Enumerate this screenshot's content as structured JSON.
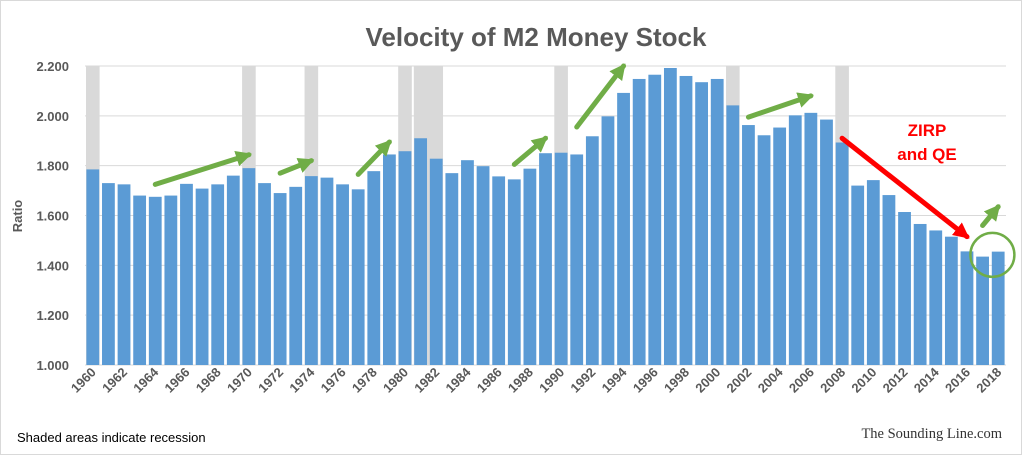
{
  "chart_data": {
    "type": "bar",
    "title": "Velocity of M2 Money Stock",
    "ylabel": "Ratio",
    "xlabel": "",
    "ylim": [
      1.0,
      2.2
    ],
    "yticks": [
      "1.000",
      "1.200",
      "1.400",
      "1.600",
      "1.800",
      "2.000",
      "2.200"
    ],
    "grid": true,
    "colors": {
      "bar": "#5b9bd5",
      "recession": "#d9d9d9",
      "arrow_green": "#70ad47",
      "arrow_red": "#ff0000"
    },
    "categories": [
      "1960",
      "1961",
      "1962",
      "1963",
      "1964",
      "1965",
      "1966",
      "1967",
      "1968",
      "1969",
      "1970",
      "1971",
      "1972",
      "1973",
      "1974",
      "1975",
      "1976",
      "1977",
      "1978",
      "1979",
      "1980",
      "1981",
      "1982",
      "1983",
      "1984",
      "1985",
      "1986",
      "1987",
      "1988",
      "1989",
      "1990",
      "1991",
      "1992",
      "1993",
      "1994",
      "1995",
      "1996",
      "1997",
      "1998",
      "1999",
      "2000",
      "2001",
      "2002",
      "2003",
      "2004",
      "2005",
      "2006",
      "2007",
      "2008",
      "2009",
      "2010",
      "2011",
      "2012",
      "2013",
      "2014",
      "2015",
      "2016",
      "2017",
      "2018"
    ],
    "tick_labels": [
      "1960",
      "1962",
      "1964",
      "1966",
      "1968",
      "1970",
      "1972",
      "1974",
      "1976",
      "1978",
      "1980",
      "1982",
      "1984",
      "1986",
      "1988",
      "1990",
      "1992",
      "1994",
      "1996",
      "1998",
      "2000",
      "2002",
      "2004",
      "2006",
      "2008",
      "2010",
      "2012",
      "2014",
      "2016",
      "2018"
    ],
    "values": [
      1.785,
      1.73,
      1.725,
      1.68,
      1.675,
      1.68,
      1.727,
      1.708,
      1.725,
      1.76,
      1.79,
      1.73,
      1.69,
      1.715,
      1.758,
      1.752,
      1.725,
      1.705,
      1.778,
      1.845,
      1.858,
      1.91,
      1.828,
      1.77,
      1.822,
      1.798,
      1.757,
      1.745,
      1.788,
      1.85,
      1.852,
      1.845,
      1.918,
      1.998,
      2.092,
      2.148,
      2.165,
      2.192,
      2.16,
      2.135,
      2.148,
      2.042,
      1.963,
      1.922,
      1.953,
      2.002,
      2.012,
      1.985,
      1.893,
      1.72,
      1.742,
      1.682,
      1.614,
      1.566,
      1.54,
      1.515,
      1.456,
      1.435,
      1.455
    ],
    "recessions": [
      [
        "1960",
        "1960"
      ],
      [
        "1970",
        "1970"
      ],
      [
        "1974",
        "1974"
      ],
      [
        "1980",
        "1980"
      ],
      [
        "1981",
        "1982"
      ],
      [
        "1990",
        "1990"
      ],
      [
        "2001",
        "2001"
      ],
      [
        "2008",
        "2008"
      ]
    ],
    "annotations": {
      "zirp_line1": "ZIRP",
      "zirp_line2": "and QE"
    }
  },
  "footnote": "Shaded areas indicate recession",
  "credit": "The Sounding Line.com"
}
